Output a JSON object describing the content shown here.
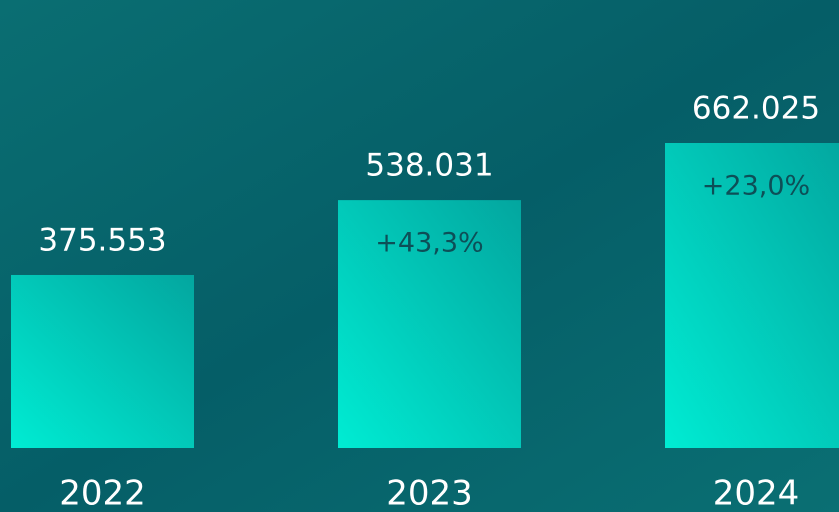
{
  "chart_data": {
    "type": "bar",
    "categories": [
      "2022",
      "2023",
      "2024"
    ],
    "values": [
      375553,
      538031,
      662025
    ],
    "value_labels": [
      "375.553",
      "538.031",
      "662.025"
    ],
    "growth_labels": [
      null,
      "+43,3%",
      "+23,0%"
    ]
  }
}
